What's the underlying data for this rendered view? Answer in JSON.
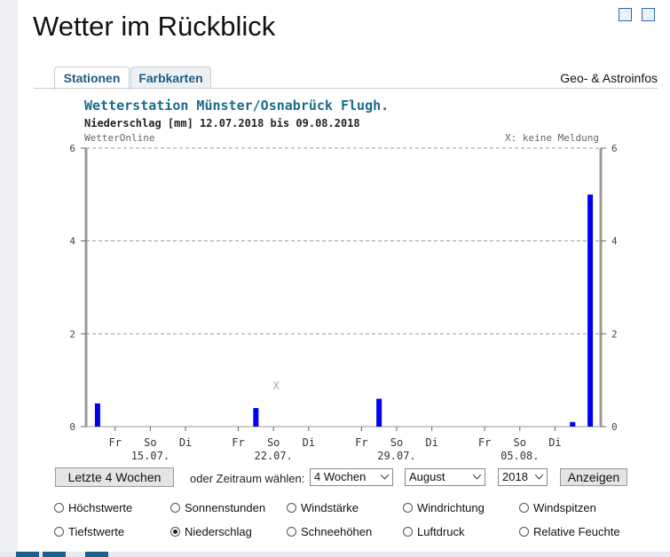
{
  "header": {
    "title": "Wetter im Rückblick"
  },
  "tabs": [
    "Stationen",
    "Farbkarten"
  ],
  "geo_link": "Geo- & Astroinfos",
  "chart_data": {
    "type": "bar",
    "title": "Wetterstation Münster/Osnabrück Flugh.",
    "subtitle": "Niederschlag [mm] 12.07.2018 bis 09.08.2018",
    "source": "WetterOnline",
    "missing_note": "X: keine Meldung",
    "missing_marker": "X",
    "categories": [
      null,
      "Fr",
      null,
      "So",
      null,
      "Di",
      null,
      null,
      "Fr",
      null,
      "So",
      null,
      "Di",
      null,
      null,
      "Fr",
      null,
      "So",
      null,
      "Di",
      null,
      null,
      "Fr",
      null,
      "So",
      null,
      "Di",
      null,
      null
    ],
    "date_labels": [
      null,
      null,
      null,
      "15.07.",
      null,
      null,
      null,
      null,
      null,
      null,
      "22.07.",
      null,
      null,
      null,
      null,
      null,
      null,
      "29.07.",
      null,
      null,
      null,
      null,
      null,
      null,
      "05.08.",
      null,
      null,
      null,
      null
    ],
    "values": [
      0.5,
      0,
      0,
      0,
      0,
      0,
      0,
      0,
      0,
      0.4,
      null,
      0,
      0,
      0,
      0,
      0,
      0.6,
      0,
      0,
      0,
      0,
      0,
      0,
      0,
      0,
      0,
      0,
      0.1,
      5.0
    ],
    "color": "#0000ee",
    "ylim": [
      0,
      6
    ],
    "yticks": [
      0,
      2,
      4,
      6
    ],
    "grid": true
  },
  "controls": {
    "last_weeks_button": "Letzte 4 Wochen",
    "range_label": "oder Zeitraum wählen:",
    "period": "4 Wochen",
    "month": "August",
    "year": "2018",
    "show_button": "Anzeigen"
  },
  "options": [
    {
      "label": "Höchstwerte",
      "checked": false
    },
    {
      "label": "Sonnenstunden",
      "checked": false
    },
    {
      "label": "Windstärke",
      "checked": false
    },
    {
      "label": "Windrichtung",
      "checked": false
    },
    {
      "label": "Windspitzen",
      "checked": false
    },
    {
      "label": "Tiefstwerte",
      "checked": false
    },
    {
      "label": "Niederschlag",
      "checked": true
    },
    {
      "label": "Schneehöhen",
      "checked": false
    },
    {
      "label": "Luftdruck",
      "checked": false
    },
    {
      "label": "Relative Feuchte",
      "checked": false
    }
  ]
}
